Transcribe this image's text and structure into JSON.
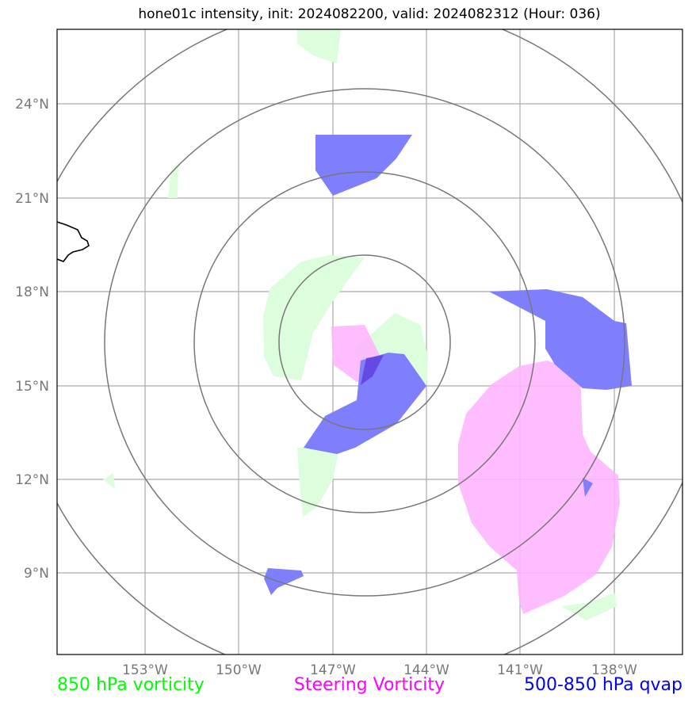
{
  "title": "hone01c intensity, init: 2024082200, valid: 2024082312 (Hour: 036)",
  "lat_labels": [
    "24°N",
    "21°N",
    "18°N",
    "15°N",
    "12°N",
    "9°N"
  ],
  "lon_labels": [
    "153°W",
    "150°W",
    "147°W",
    "144°W",
    "141°W",
    "138°W"
  ],
  "legend": {
    "vorticity850": {
      "label": "850 hPa vorticity",
      "color": "#00ff00"
    },
    "steering": {
      "label": "Steering Vorticity",
      "color": "#ff00ff"
    },
    "qvap": {
      "label": "500-850 hPa qvap",
      "color": "#0000ff"
    }
  },
  "colors": {
    "green_fill": "#dcfedc",
    "magenta_fill": "#feb4fe",
    "blue_fill": "#7f7ffe",
    "grid": "#aaaaaa",
    "range_rings": "#777777",
    "coastline": "#000000"
  }
}
